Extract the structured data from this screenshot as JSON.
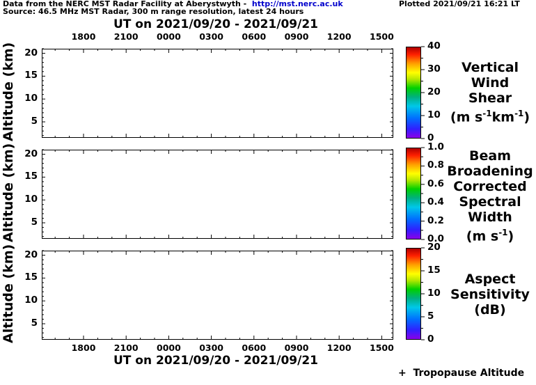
{
  "header": {
    "line1_prefix": "Data from the NERC MST Radar Facility at Aberystwyth -  ",
    "line1_link": "http://mst.nerc.ac.uk",
    "plotted": "Plotted 2021/09/21 16:21 LT",
    "line2": "Source: 46.5 MHz MST Radar, 300 m range resolution, latest 24 hours"
  },
  "ut_title": "UT on 2021/09/20 - 2021/09/21",
  "time_ticks": [
    "1800",
    "2100",
    "0000",
    "0300",
    "0600",
    "0900",
    "1200",
    "1500"
  ],
  "footer": {
    "legend": "+  Tropopause Altitude"
  },
  "chart_data": [
    {
      "type": "heatmap",
      "title": "Vertical Wind Shear",
      "ylabel": "Altitude (km)",
      "xlabel": "UT on 2021/09/20 - 2021/09/21",
      "y_ticks": [
        5,
        10,
        15,
        20
      ],
      "ylim": [
        1.5,
        21
      ],
      "colorbar": {
        "label_lines": [
          "Vertical",
          "Wind",
          "Shear"
        ],
        "unit_html": "(m s<sup>-1</sup>km<sup>-1</sup>)",
        "ticks": [
          "0",
          "10",
          "20",
          "30",
          "40"
        ],
        "range": [
          0,
          40
        ]
      },
      "values": []
    },
    {
      "type": "heatmap",
      "title": "Beam Broadening Corrected Spectral Width",
      "ylabel": "Altitude (km)",
      "y_ticks": [
        5,
        10,
        15,
        20
      ],
      "ylim": [
        1.5,
        21
      ],
      "colorbar": {
        "label_lines": [
          "Beam",
          "Broadening",
          "Corrected",
          "Spectral",
          "Width"
        ],
        "unit_html": "(m s<sup>-1</sup>)",
        "ticks": [
          "0.0",
          "0.2",
          "0.4",
          "0.6",
          "0.8",
          "1.0"
        ],
        "range": [
          0,
          1
        ]
      },
      "values": []
    },
    {
      "type": "heatmap",
      "title": "Aspect Sensitivity",
      "ylabel": "Altitude (km)",
      "xlabel": "UT on 2021/09/20 - 2021/09/21",
      "y_ticks": [
        5,
        10,
        15,
        20
      ],
      "ylim": [
        1.5,
        21
      ],
      "colorbar": {
        "label_lines": [
          "Aspect",
          "Sensitivity"
        ],
        "unit_html": "(dB)",
        "ticks": [
          "0",
          "5",
          "10",
          "15",
          "20"
        ],
        "range": [
          0,
          20
        ]
      },
      "values": []
    }
  ]
}
